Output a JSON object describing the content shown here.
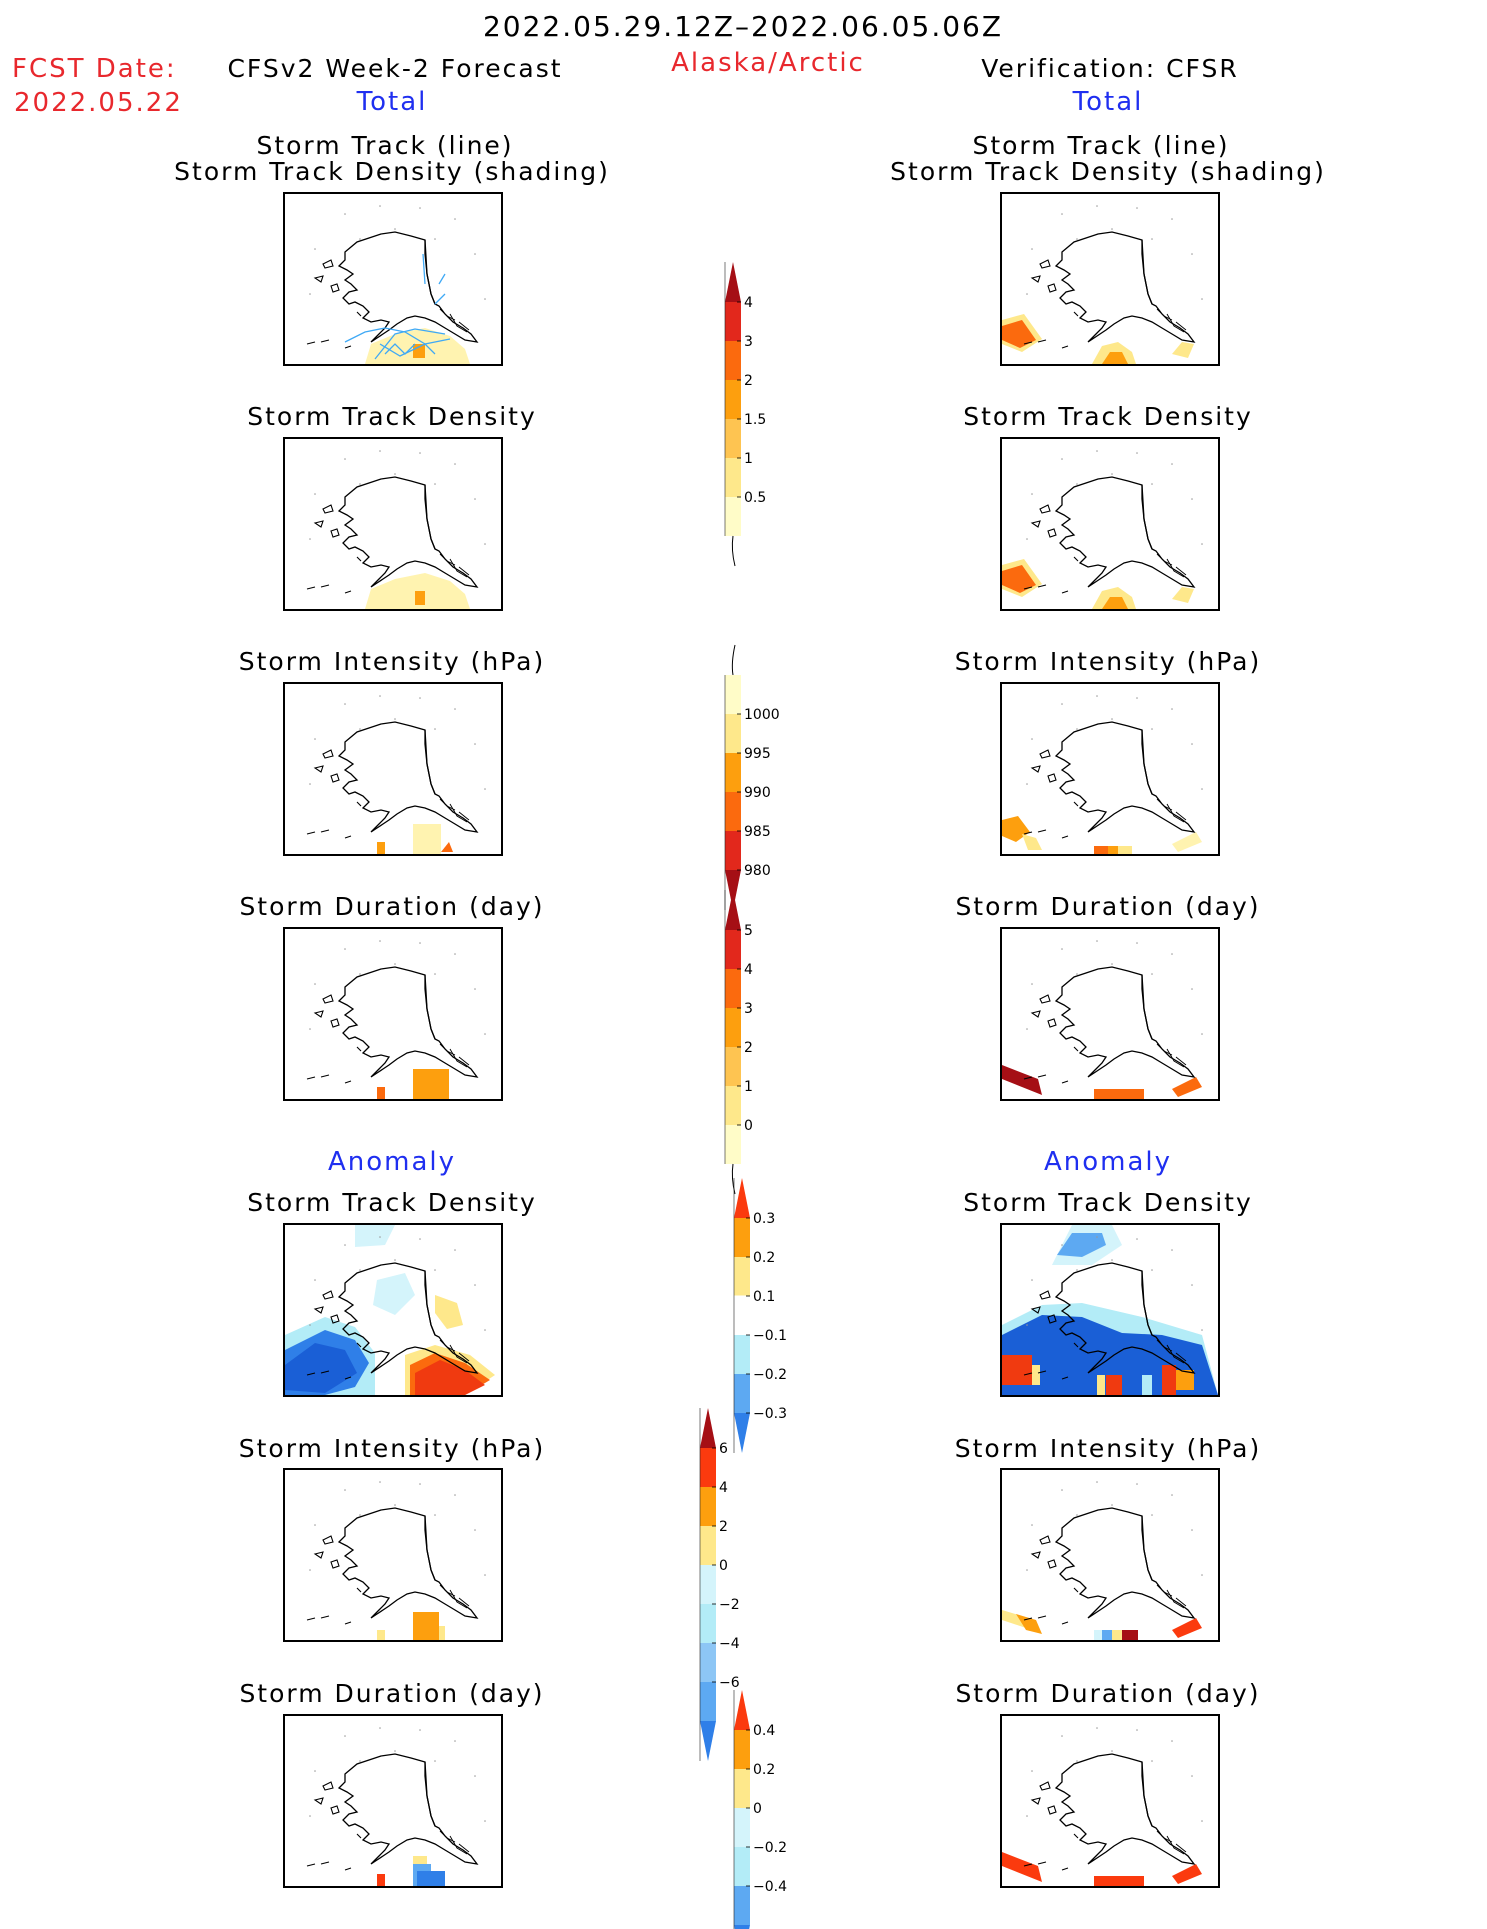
{
  "header": {
    "date_range": "2022.05.29.12Z–2022.06.05.06Z",
    "fcst_label": "FCST Date:",
    "fcst_date": "2022.05.22",
    "model": "CFSv2 Week-2 Forecast",
    "region": "Alaska/Arctic",
    "verification": "Verification: CFSR"
  },
  "sections": {
    "total_label": "Total",
    "anomaly_label": "Anomaly"
  },
  "panel_titles": {
    "track_line1": "Storm Track (line)",
    "track_line2": "Storm Track Density (shading)",
    "density": "Storm Track Density",
    "intensity": "Storm Intensity (hPa)",
    "duration": "Storm Duration (day)"
  },
  "colorbars": {
    "density_total": {
      "labels": [
        "4",
        "3",
        "2",
        "1.5",
        "1",
        "0.5"
      ],
      "colors": [
        "#a50f15",
        "#e2281c",
        "#fb6a0e",
        "#fd9f0e",
        "#fec451",
        "#fee88b",
        "#fffcc8"
      ]
    },
    "intensity_total": {
      "labels": [
        "1000",
        "995",
        "990",
        "985",
        "980"
      ],
      "colors": [
        "#fffcc8",
        "#fee88b",
        "#fd9f0e",
        "#fb6a0e",
        "#e2281c",
        "#a50f15"
      ]
    },
    "duration_total": {
      "labels": [
        "5",
        "4",
        "3",
        "2",
        "1",
        "0"
      ],
      "colors": [
        "#a50f15",
        "#e2281c",
        "#fb6a0e",
        "#fd9f0e",
        "#fec451",
        "#fee88b",
        "#fffcc8"
      ]
    },
    "density_anom": {
      "labels": [
        "0.3",
        "0.2",
        "0.1",
        "−0.1",
        "−0.2",
        "−0.3"
      ],
      "colors": [
        "#fb3a0e",
        "#fd9f0e",
        "#fee88b",
        "#ffffff",
        "#b3ecf7",
        "#5da9f2",
        "#2f7fe8"
      ]
    },
    "intensity_anom": {
      "labels": [
        "6",
        "4",
        "2",
        "0",
        "−2",
        "−4",
        "−6"
      ],
      "colors": [
        "#a50f15",
        "#fb3a0e",
        "#fd9f0e",
        "#fee88b",
        "#d4f4fb",
        "#b3ecf7",
        "#8dc6f5",
        "#5da9f2",
        "#2f7fe8"
      ]
    },
    "duration_anom": {
      "labels": [
        "0.4",
        "0.2",
        "0",
        "−0.2",
        "−0.4"
      ],
      "colors": [
        "#fb3a0e",
        "#fd9f0e",
        "#fee88b",
        "#d4f4fb",
        "#b3ecf7",
        "#5da9f2",
        "#2f7fe8"
      ]
    }
  }
}
